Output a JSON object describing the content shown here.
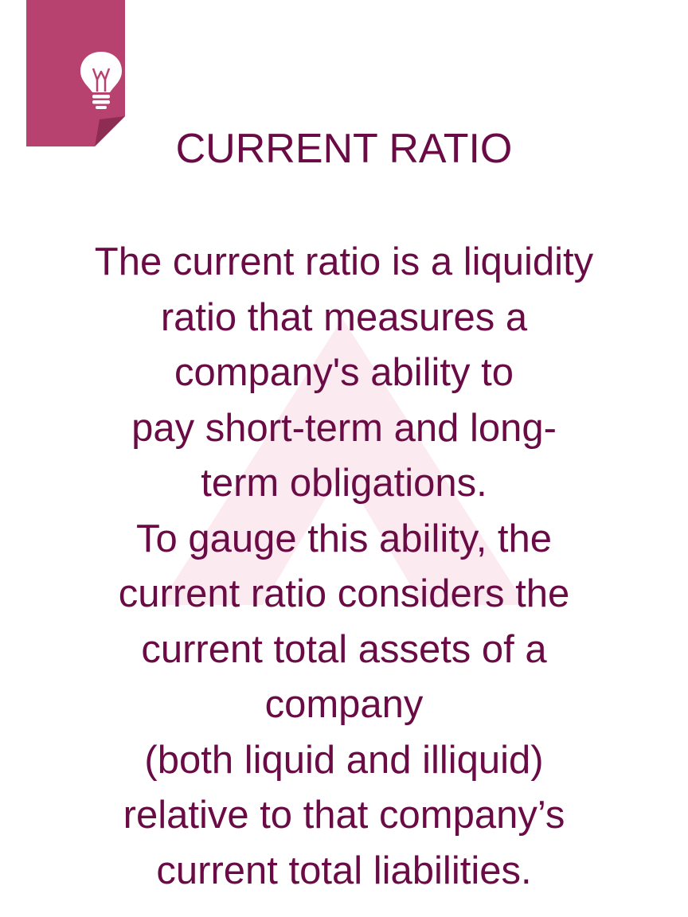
{
  "colors": {
    "text": "#6a0b45",
    "badge": "#b8426f",
    "badge_fold": "#8e2c53",
    "watermark": "#fbeaef"
  },
  "badge": {
    "icon": "lightbulb-icon"
  },
  "title": "CURRENT RATIO",
  "body_lines": [
    "The current ratio is a liquidity",
    "ratio that measures a",
    "company's ability to",
    "pay short-term and long-",
    "term obligations.",
    "To gauge this ability, the",
    "current ratio considers the",
    "current total assets of a",
    "company",
    "(both liquid and illiquid)",
    "relative to that company’s",
    "current total liabilities."
  ]
}
